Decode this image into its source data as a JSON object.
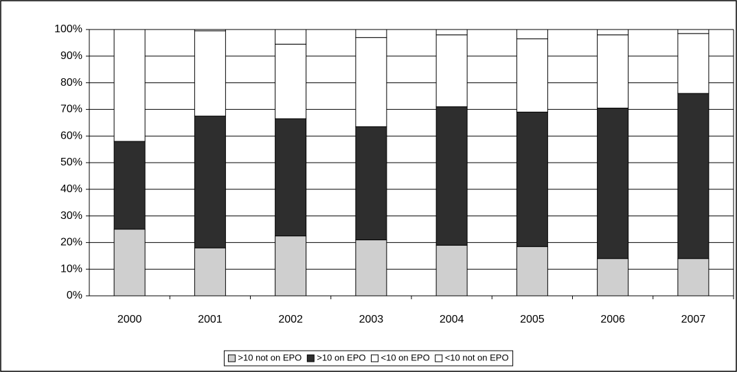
{
  "chart_data": {
    "type": "stacked-bar",
    "categories": [
      "2000",
      "2001",
      "2002",
      "2003",
      "2004",
      "2005",
      "2006",
      "2007"
    ],
    "series": [
      {
        "name": ">10 not on EPO",
        "color": "#cfcfcf",
        "values": [
          25,
          18,
          22.5,
          21,
          19,
          18.5,
          14,
          14
        ]
      },
      {
        "name": ">10 on EPO",
        "color": "#2e2e2e",
        "values": [
          33,
          49.5,
          44,
          42.5,
          52,
          50.5,
          56.5,
          62
        ]
      },
      {
        "name": "<10 on EPO",
        "color": "#ffffff",
        "values": [
          42,
          32,
          28,
          33.5,
          27,
          27.5,
          27.5,
          22.5
        ]
      },
      {
        "name": "<10 not on EPO",
        "color": "#ffffff",
        "values": [
          0,
          0.5,
          5.5,
          3,
          2,
          3.5,
          2,
          1.5
        ]
      }
    ],
    "ylim": [
      0,
      100
    ],
    "yticks": [
      {
        "value": 0,
        "label": "0%"
      },
      {
        "value": 10,
        "label": "10%"
      },
      {
        "value": 20,
        "label": "20%"
      },
      {
        "value": 30,
        "label": "30%"
      },
      {
        "value": 40,
        "label": "40%"
      },
      {
        "value": 50,
        "label": "50%"
      },
      {
        "value": 60,
        "label": "60%"
      },
      {
        "value": 70,
        "label": "70%"
      },
      {
        "value": 80,
        "label": "80%"
      },
      {
        "value": 90,
        "label": "90%"
      },
      {
        "value": 100,
        "label": "100%"
      }
    ],
    "grid": true,
    "legend": "bottom"
  }
}
